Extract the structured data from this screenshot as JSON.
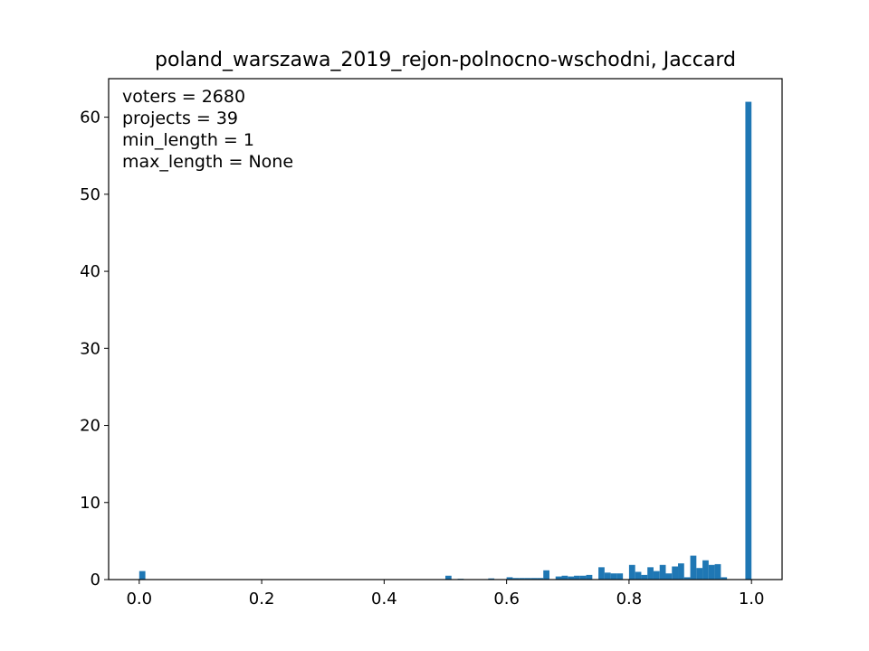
{
  "chart_data": {
    "type": "bar",
    "title": "poland_warszawa_2019_rejon-polnocno-wschodni, Jaccard",
    "xlabel": "",
    "ylabel": "",
    "xlim": [
      -0.05,
      1.05
    ],
    "ylim": [
      0,
      65
    ],
    "x_ticks": [
      "0.0",
      "0.2",
      "0.4",
      "0.6",
      "0.8",
      "1.0"
    ],
    "y_ticks": [
      "0",
      "10",
      "20",
      "30",
      "40",
      "50",
      "60"
    ],
    "grid": false,
    "legend": "none",
    "bar_color": "#1f77b4",
    "bin_width": 0.01,
    "bins": [
      {
        "x": 0.0,
        "value": 1.1
      },
      {
        "x": 0.33,
        "value": 0.05
      },
      {
        "x": 0.5,
        "value": 0.5
      },
      {
        "x": 0.52,
        "value": 0.1
      },
      {
        "x": 0.57,
        "value": 0.15
      },
      {
        "x": 0.6,
        "value": 0.3
      },
      {
        "x": 0.61,
        "value": 0.2
      },
      {
        "x": 0.62,
        "value": 0.2
      },
      {
        "x": 0.63,
        "value": 0.2
      },
      {
        "x": 0.64,
        "value": 0.2
      },
      {
        "x": 0.65,
        "value": 0.2
      },
      {
        "x": 0.66,
        "value": 1.2
      },
      {
        "x": 0.68,
        "value": 0.4
      },
      {
        "x": 0.69,
        "value": 0.5
      },
      {
        "x": 0.7,
        "value": 0.4
      },
      {
        "x": 0.71,
        "value": 0.5
      },
      {
        "x": 0.72,
        "value": 0.5
      },
      {
        "x": 0.73,
        "value": 0.6
      },
      {
        "x": 0.75,
        "value": 1.6
      },
      {
        "x": 0.76,
        "value": 0.9
      },
      {
        "x": 0.77,
        "value": 0.8
      },
      {
        "x": 0.78,
        "value": 0.8
      },
      {
        "x": 0.8,
        "value": 1.9
      },
      {
        "x": 0.81,
        "value": 1.0
      },
      {
        "x": 0.82,
        "value": 0.6
      },
      {
        "x": 0.83,
        "value": 1.6
      },
      {
        "x": 0.84,
        "value": 1.1
      },
      {
        "x": 0.85,
        "value": 1.9
      },
      {
        "x": 0.86,
        "value": 0.8
      },
      {
        "x": 0.87,
        "value": 1.7
      },
      {
        "x": 0.88,
        "value": 2.1
      },
      {
        "x": 0.89,
        "value": 0.3
      },
      {
        "x": 0.9,
        "value": 3.1
      },
      {
        "x": 0.91,
        "value": 1.5
      },
      {
        "x": 0.92,
        "value": 2.5
      },
      {
        "x": 0.93,
        "value": 1.9
      },
      {
        "x": 0.94,
        "value": 2.0
      },
      {
        "x": 0.95,
        "value": 0.3
      },
      {
        "x": 0.99,
        "value": 62.0
      }
    ],
    "annotations": [
      "voters = 2680",
      "projects = 39",
      "min_length = 1",
      "max_length = None"
    ]
  }
}
